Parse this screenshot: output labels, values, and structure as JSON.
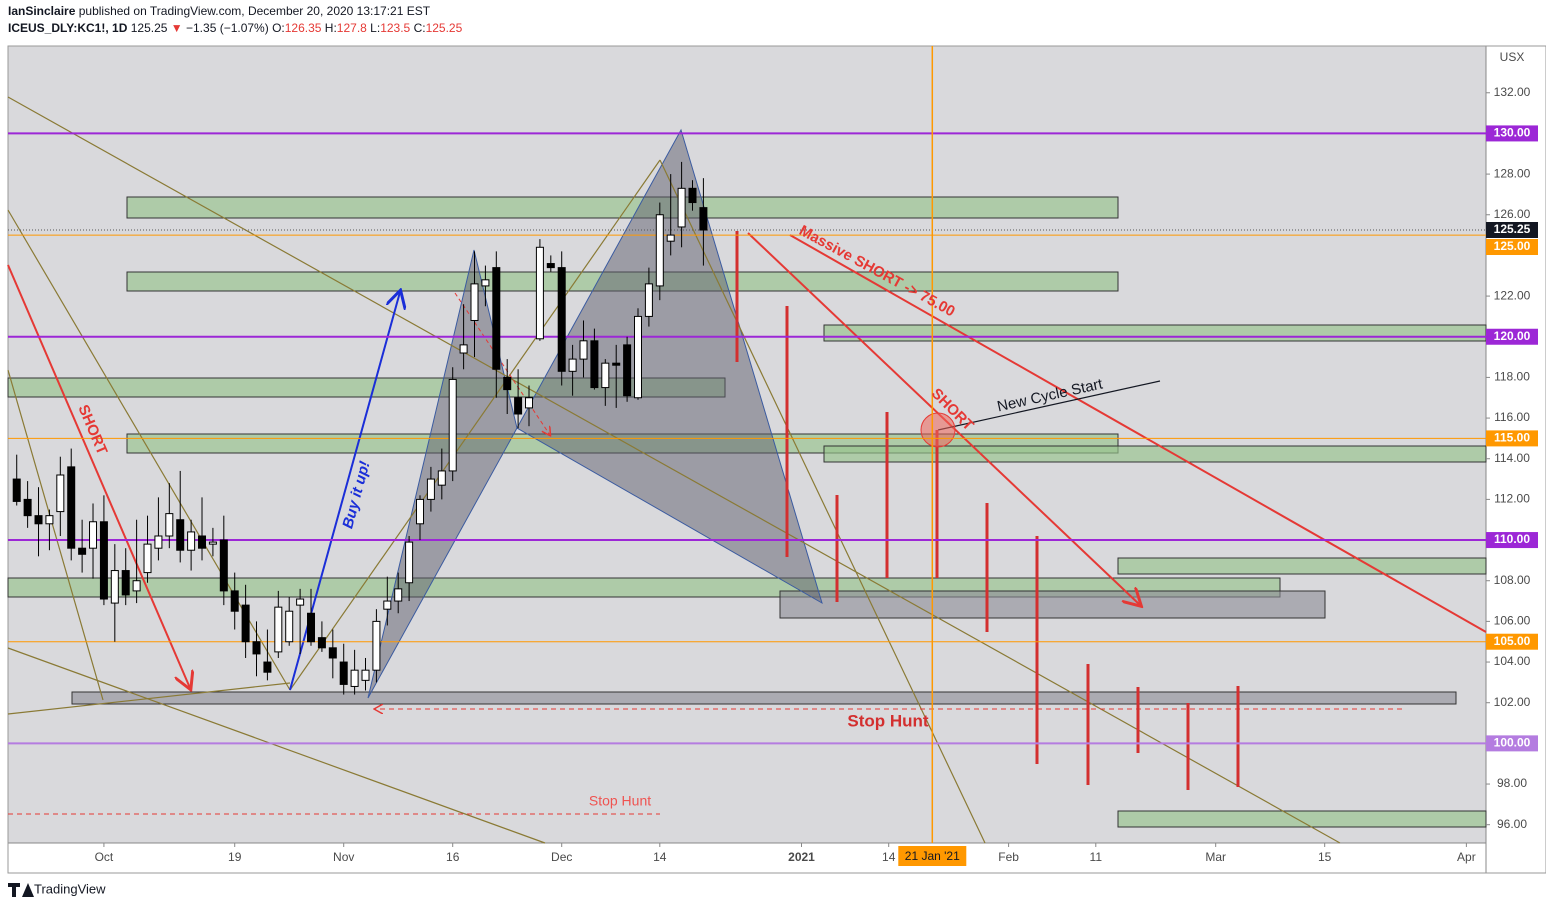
{
  "header": {
    "author": "IanSinclaire",
    "published": "published on TradingView.com, December 20, 2020 13:17:21 EST",
    "symbol": "ICEUS_DLY:KC1!, 1D",
    "price": 125.25,
    "arrow": "▼",
    "change": "−1.35 (−1.07%)",
    "o_label": "O:",
    "open": 126.35,
    "h_label": "H:",
    "high": 127.8,
    "l_label": "L:",
    "low": 123.5,
    "c_label": "C:",
    "close": 125.25
  },
  "annotations": [
    "SHORT",
    "Buy it up!",
    "Massive SHORT -> 75.00",
    "SHORT",
    "New Cycle Start",
    "Stop Hunt",
    "Stop Hunt"
  ],
  "brand": "TradingView",
  "chart_data": {
    "type": "candlestick",
    "axis_unit": "USX",
    "up_color": "#ffffff",
    "down_color": "#000000",
    "open": [
      113.0,
      112.0,
      111.2,
      110.8,
      111.4,
      113.6,
      109.6,
      109.6,
      110.9,
      106.9,
      108.5,
      107.5,
      108.4,
      109.6,
      110.2,
      111.0,
      109.5,
      110.2,
      109.8,
      110.0,
      107.5,
      106.8,
      105.0,
      104.0,
      104.5,
      105.0,
      106.8,
      106.4,
      105.2,
      104.7,
      104.0,
      102.8,
      103.1,
      103.6,
      106.6,
      107.0,
      107.9,
      110.8,
      112.0,
      112.7,
      113.4,
      119.2,
      120.8,
      122.5,
      123.4,
      118.0,
      117.0,
      116.5,
      119.9,
      123.6,
      123.4,
      118.3,
      118.9,
      119.8,
      117.5,
      118.7,
      119.6,
      117.0,
      121.0,
      122.5,
      124.7,
      125.4,
      127.3,
      126.35
    ],
    "high": [
      114.2,
      112.9,
      112.6,
      111.5,
      114.1,
      114.5,
      111.0,
      111.8,
      112.2,
      109.8,
      109.6,
      111.0,
      111.2,
      112.1,
      112.8,
      113.4,
      111.0,
      112.1,
      110.6,
      111.2,
      108.4,
      107.8,
      106.0,
      105.6,
      107.5,
      107.2,
      107.6,
      107.6,
      106.0,
      105.6,
      104.9,
      104.6,
      104.2,
      106.6,
      108.2,
      108.4,
      110.2,
      112.2,
      113.6,
      114.5,
      118.5,
      121.6,
      124.2,
      123.5,
      124.2,
      118.9,
      118.4,
      117.6,
      124.8,
      124.0,
      124.2,
      119.6,
      120.8,
      120.4,
      118.9,
      119.6,
      120.0,
      121.4,
      123.4,
      126.6,
      128.0,
      128.6,
      127.7,
      127.8
    ],
    "low": [
      111.7,
      110.6,
      109.2,
      109.5,
      110.2,
      109.0,
      108.4,
      108.1,
      106.8,
      105.0,
      106.8,
      106.9,
      107.9,
      109.0,
      109.6,
      108.9,
      108.5,
      109.0,
      109.2,
      106.8,
      105.6,
      104.2,
      103.3,
      103.1,
      104.2,
      104.8,
      104.4,
      104.8,
      104.5,
      103.2,
      102.4,
      102.4,
      102.6,
      103.0,
      105.8,
      106.4,
      107.0,
      110.0,
      111.4,
      112.0,
      112.9,
      118.4,
      119.0,
      121.5,
      117.0,
      116.2,
      115.5,
      115.6,
      119.8,
      123.2,
      117.6,
      117.1,
      118.0,
      117.4,
      116.6,
      116.5,
      116.8,
      116.9,
      120.5,
      121.8,
      124.0,
      124.4,
      126.2,
      123.5
    ],
    "close": [
      111.9,
      111.2,
      110.8,
      111.2,
      113.2,
      109.6,
      109.3,
      110.9,
      107.1,
      108.5,
      107.3,
      108.0,
      109.8,
      110.2,
      111.3,
      109.5,
      110.4,
      109.6,
      109.9,
      107.5,
      106.5,
      105.0,
      104.4,
      103.5,
      106.7,
      106.5,
      107.1,
      105.0,
      104.7,
      104.2,
      102.9,
      103.6,
      103.6,
      106.0,
      107.0,
      107.6,
      109.9,
      112.0,
      113.0,
      113.4,
      117.9,
      119.6,
      122.6,
      122.8,
      118.4,
      117.4,
      116.2,
      117.0,
      124.4,
      123.4,
      118.3,
      118.9,
      119.8,
      117.5,
      118.7,
      118.6,
      117.1,
      121.0,
      122.6,
      126.0,
      125.0,
      127.3,
      126.6,
      125.25
    ],
    "xlim": [
      -0.8,
      134.8
    ],
    "xticks": [
      {
        "value": 8,
        "label": "Oct"
      },
      {
        "value": 20,
        "label": "19"
      },
      {
        "value": 30,
        "label": "Nov"
      },
      {
        "value": 40,
        "label": "16"
      },
      {
        "value": 50,
        "label": "Dec"
      },
      {
        "value": 59,
        "label": "14"
      },
      {
        "value": 72,
        "label": "2021"
      },
      {
        "value": 80,
        "label": "14"
      },
      {
        "value": 91,
        "label": "Feb"
      },
      {
        "value": 99,
        "label": "11"
      },
      {
        "value": 110,
        "label": "Mar"
      },
      {
        "value": 120,
        "label": "15"
      },
      {
        "value": 133,
        "label": "Apr"
      }
    ],
    "ylim": [
      95.1,
      134.3
    ],
    "yticks": [
      {
        "value": 96,
        "label": "96.00"
      },
      {
        "value": 98,
        "label": "98.00"
      },
      {
        "value": 100,
        "label": "100.00"
      },
      {
        "value": 102,
        "label": "102.00"
      },
      {
        "value": 104,
        "label": "104.00"
      },
      {
        "value": 106,
        "label": "106.00"
      },
      {
        "value": 108,
        "label": "108.00"
      },
      {
        "value": 110,
        "label": "110.00"
      },
      {
        "value": 112,
        "label": "112.00"
      },
      {
        "value": 114,
        "label": "114.00"
      },
      {
        "value": 116,
        "label": "116.00"
      },
      {
        "value": 118,
        "label": "118.00"
      },
      {
        "value": 120,
        "label": "120.00"
      },
      {
        "value": 122,
        "label": "122.00"
      },
      {
        "value": 126,
        "label": "126.00"
      },
      {
        "value": 128,
        "label": "128.00"
      },
      {
        "value": 130,
        "label": "130.00"
      },
      {
        "value": 132,
        "label": "132.00"
      }
    ],
    "levels": [
      {
        "value": 130,
        "label": "130.00",
        "color": "#9c27d6"
      },
      {
        "value": 125,
        "label": "125.00",
        "color": "#ff9800"
      },
      {
        "value": 120,
        "label": "120.00",
        "color": "#9c27d6"
      },
      {
        "value": 115,
        "label": "115.00",
        "color": "#ff9800"
      },
      {
        "value": 110,
        "label": "110.00",
        "color": "#9c27d6"
      },
      {
        "value": 105,
        "label": "105.00",
        "color": "#ff9800"
      },
      {
        "value": 100,
        "label": "100.00",
        "color": "#b47ce0"
      }
    ],
    "last_price": {
      "value": 125.25,
      "label": "125.25",
      "color": "#131722"
    },
    "marker": {
      "value": 84,
      "label": "21 Jan '21",
      "color": "#ff9800"
    }
  }
}
